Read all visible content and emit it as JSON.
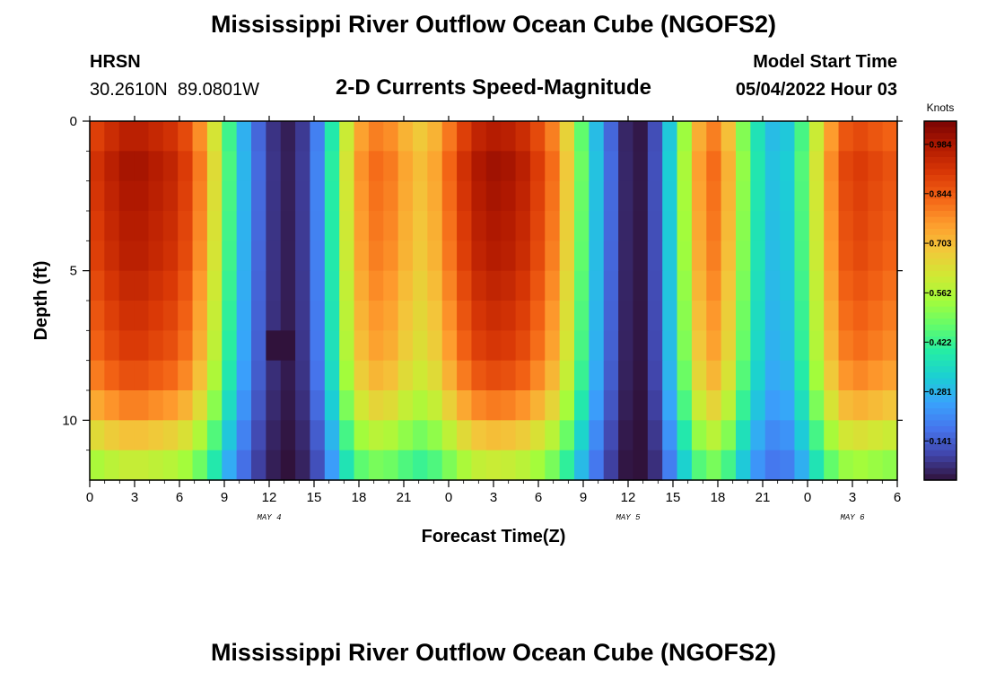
{
  "header": {
    "title": "Mississippi River Outflow Ocean Cube (NGOFS2)",
    "station_name": "HRSN",
    "station_coords": "30.2610N  89.0801W",
    "subtitle": "2-D Currents Speed-Magnitude",
    "model_start_label": "Model Start Time",
    "model_start_value": "05/04/2022 Hour 03"
  },
  "footer": {
    "title": "Mississippi River Outflow Ocean Cube (NGOFS2)"
  },
  "chart_data": {
    "type": "heatmap",
    "xlabel": "Forecast Time(Z)",
    "ylabel": "Depth (ft)",
    "x_range_hours": [
      0,
      54
    ],
    "ylim": [
      12,
      0
    ],
    "x_ticks": [
      "0",
      "3",
      "6",
      "9",
      "12",
      "15",
      "18",
      "21",
      "0",
      "3",
      "6",
      "9",
      "12",
      "15",
      "18",
      "21",
      "0",
      "3",
      "6"
    ],
    "y_ticks": [
      "0",
      "5",
      "10"
    ],
    "date_labels": [
      {
        "text": "MAY 4",
        "hour": 12
      },
      {
        "text": "MAY 5",
        "hour": 36
      },
      {
        "text": "MAY 6",
        "hour": 51
      }
    ],
    "colorbar": {
      "label": "Knots",
      "ticks": [
        "0.984",
        "0.844",
        "0.703",
        "0.562",
        "0.422",
        "0.281",
        "0.141"
      ],
      "tick_values": [
        0.984,
        0.844,
        0.703,
        0.562,
        0.422,
        0.281,
        0.141
      ],
      "range": [
        0.03,
        1.05
      ],
      "colors": [
        "#30123b",
        "#4145ab",
        "#4675ed",
        "#39a2fc",
        "#1bcfd4",
        "#24eca6",
        "#61fc6c",
        "#a4fc3b",
        "#d1e834",
        "#f3c63a",
        "#fe9b2d",
        "#f36315",
        "#d93806",
        "#b11901",
        "#7a0403"
      ]
    },
    "grid_columns": 55,
    "grid_rows": 12,
    "max_speed_profile": [
      0.92,
      0.96,
      0.99,
      0.99,
      0.97,
      0.95,
      0.9,
      0.8,
      0.64,
      0.44,
      0.28,
      0.16,
      0.08,
      0.05,
      0.09,
      0.2,
      0.4,
      0.62,
      0.77,
      0.82,
      0.8,
      0.74,
      0.7,
      0.74,
      0.83,
      0.92,
      0.98,
      1.0,
      0.99,
      0.96,
      0.9,
      0.82,
      0.68,
      0.48,
      0.3,
      0.16,
      0.06,
      0.04,
      0.12,
      0.32,
      0.55,
      0.75,
      0.82,
      0.72,
      0.52,
      0.38,
      0.3,
      0.32,
      0.45,
      0.62,
      0.78,
      0.88,
      0.9,
      0.88,
      0.86
    ],
    "depth_factor": [
      0.97,
      1.0,
      0.99,
      0.98,
      0.97,
      0.95,
      0.93,
      0.91,
      0.87,
      0.8,
      0.7,
      0.6
    ],
    "minimum_cell": {
      "hour": 12.5,
      "depth_ft": 7,
      "value": 0.03
    }
  }
}
